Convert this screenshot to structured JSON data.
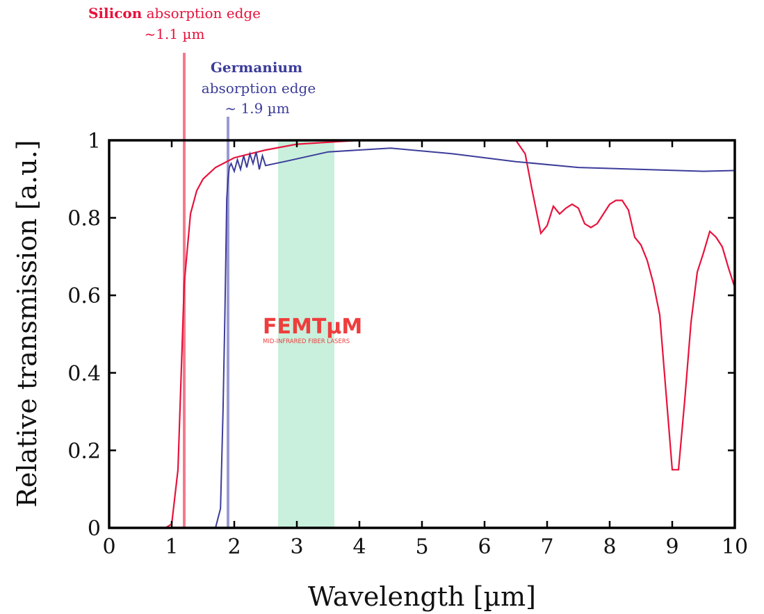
{
  "chart_data": {
    "type": "line",
    "xlabel": "Wavelength [µm]",
    "ylabel": "Relative transmission [a.u.]",
    "xlim": [
      0,
      10
    ],
    "ylim": [
      0,
      1
    ],
    "xticks": [
      "0",
      "1",
      "2",
      "3",
      "4",
      "5",
      "6",
      "7",
      "8",
      "9",
      "10"
    ],
    "yticks": [
      "0",
      "0.2",
      "0.4",
      "0.6",
      "0.8",
      "1"
    ],
    "grid": false,
    "highlight_band": {
      "x_start": 2.7,
      "x_end": 3.6,
      "color": "#c8f0dc"
    },
    "series": [
      {
        "color": "#e8123c",
        "x": [
          0.9,
          1.0,
          1.1,
          1.2,
          1.3,
          1.4,
          1.5,
          1.7,
          2.0,
          2.5,
          3.0,
          3.5,
          4.0,
          5.0,
          6.0,
          6.5,
          6.65,
          6.75,
          6.9,
          7.0,
          7.1,
          7.2,
          7.3,
          7.4,
          7.5,
          7.6,
          7.7,
          7.8,
          7.9,
          8.0,
          8.1,
          8.2,
          8.3,
          8.4,
          8.5,
          8.6,
          8.7,
          8.8,
          8.9,
          9.0,
          9.1,
          9.2,
          9.3,
          9.4,
          9.5,
          9.6,
          9.7,
          9.8,
          9.9,
          10.0
        ],
        "y": [
          0.0,
          0.01,
          0.15,
          0.63,
          0.81,
          0.87,
          0.9,
          0.93,
          0.955,
          0.975,
          0.99,
          0.995,
          1.0,
          1.0,
          1.0,
          1.0,
          0.965,
          0.88,
          0.76,
          0.78,
          0.83,
          0.81,
          0.825,
          0.835,
          0.825,
          0.785,
          0.775,
          0.785,
          0.81,
          0.835,
          0.845,
          0.845,
          0.82,
          0.75,
          0.73,
          0.69,
          0.63,
          0.55,
          0.35,
          0.15,
          0.15,
          0.33,
          0.53,
          0.66,
          0.71,
          0.765,
          0.75,
          0.725,
          0.67,
          0.62
        ]
      },
      {
        "color": "#3c3c9a",
        "x": [
          1.7,
          1.78,
          1.82,
          1.85,
          1.88,
          1.9,
          1.92,
          1.95,
          2.0,
          2.05,
          2.1,
          2.15,
          2.2,
          2.25,
          2.3,
          2.35,
          2.4,
          2.45,
          2.5,
          2.8,
          3.5,
          4.5,
          5.5,
          6.5,
          7.5,
          8.5,
          9.5,
          10.0
        ],
        "y": [
          0.0,
          0.05,
          0.3,
          0.55,
          0.85,
          0.9,
          0.93,
          0.94,
          0.92,
          0.95,
          0.925,
          0.96,
          0.93,
          0.965,
          0.94,
          0.97,
          0.925,
          0.96,
          0.935,
          0.945,
          0.97,
          0.98,
          0.965,
          0.945,
          0.93,
          0.925,
          0.92,
          0.922
        ]
      }
    ],
    "annotations": [
      {
        "bold": "Silicon",
        "text": " absorption edge",
        "line2": "~1.1 µm",
        "color": "#e8123c",
        "x": 1.2
      },
      {
        "bold": "Germanium",
        "line1": "absorption edge",
        "line2": "~ 1.9 µm",
        "color": "#3c3c9a",
        "x": 1.9
      }
    ]
  },
  "logo": {
    "main": "FEMTµM",
    "sub": "MID-INFRARED FIBER LASERS"
  }
}
